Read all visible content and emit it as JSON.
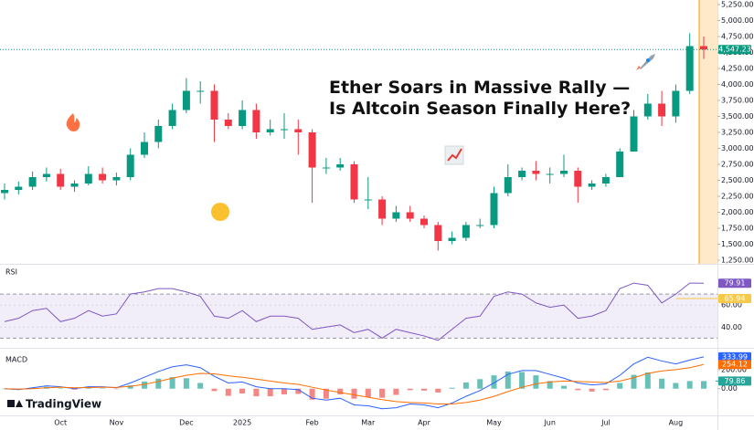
{
  "chart_data": {
    "type": "candlestick",
    "title_lines": [
      "Ether Soars in Massive Rally —",
      "Is Altcoin Season Finally Here?"
    ],
    "brand": "TradingView",
    "up_color": "#089981",
    "down_color": "#f23645",
    "categories": [
      null,
      null,
      null,
      null,
      "Oct",
      null,
      null,
      null,
      "Nov",
      null,
      null,
      null,
      null,
      "Dec",
      null,
      null,
      null,
      "2025",
      null,
      null,
      null,
      null,
      "Feb",
      null,
      null,
      null,
      "Mar",
      null,
      null,
      null,
      "Apr",
      null,
      null,
      null,
      null,
      "May",
      null,
      null,
      null,
      "Jun",
      null,
      null,
      null,
      "Jul",
      null,
      null,
      null,
      null,
      "Aug",
      null,
      null
    ],
    "ohlc": [
      [
        2300,
        2450,
        2200,
        2350
      ],
      [
        2350,
        2480,
        2280,
        2400
      ],
      [
        2400,
        2640,
        2350,
        2550
      ],
      [
        2550,
        2700,
        2480,
        2600
      ],
      [
        2600,
        2680,
        2350,
        2400
      ],
      [
        2400,
        2500,
        2320,
        2450
      ],
      [
        2450,
        2720,
        2420,
        2600
      ],
      [
        2600,
        2700,
        2450,
        2500
      ],
      [
        2500,
        2620,
        2420,
        2550
      ],
      [
        2550,
        3000,
        2500,
        2900
      ],
      [
        2900,
        3250,
        2850,
        3100
      ],
      [
        3100,
        3450,
        3000,
        3350
      ],
      [
        3350,
        3700,
        3300,
        3600
      ],
      [
        3600,
        4100,
        3550,
        3900
      ],
      [
        3900,
        4050,
        3700,
        3900
      ],
      [
        3900,
        4000,
        3100,
        3450
      ],
      [
        3450,
        3550,
        3300,
        3350
      ],
      [
        3350,
        3750,
        3300,
        3600
      ],
      [
        3600,
        3700,
        3150,
        3250
      ],
      [
        3250,
        3450,
        3200,
        3300
      ],
      [
        3300,
        3550,
        3150,
        3300
      ],
      [
        3300,
        3450,
        2900,
        3250
      ],
      [
        3250,
        3300,
        2150,
        2700
      ],
      [
        2700,
        2850,
        2600,
        2700
      ],
      [
        2700,
        2850,
        2650,
        2750
      ],
      [
        2750,
        2800,
        2150,
        2200
      ],
      [
        2200,
        2550,
        2050,
        2200
      ],
      [
        2200,
        2250,
        1800,
        1900
      ],
      [
        1900,
        2100,
        1850,
        2000
      ],
      [
        2000,
        2100,
        1850,
        1900
      ],
      [
        1900,
        1950,
        1750,
        1800
      ],
      [
        1800,
        1850,
        1400,
        1550
      ],
      [
        1550,
        1700,
        1500,
        1600
      ],
      [
        1600,
        1850,
        1550,
        1800
      ],
      [
        1800,
        1900,
        1750,
        1800
      ],
      [
        1800,
        2400,
        1750,
        2300
      ],
      [
        2300,
        2750,
        2250,
        2550
      ],
      [
        2550,
        2700,
        2500,
        2650
      ],
      [
        2650,
        2800,
        2500,
        2600
      ],
      [
        2600,
        2700,
        2450,
        2600
      ],
      [
        2600,
        2900,
        2550,
        2650
      ],
      [
        2650,
        2700,
        2150,
        2400
      ],
      [
        2400,
        2500,
        2350,
        2450
      ],
      [
        2450,
        2600,
        2400,
        2550
      ],
      [
        2550,
        3000,
        2550,
        2950
      ],
      [
        2950,
        3600,
        2950,
        3500
      ],
      [
        3500,
        3850,
        3450,
        3700
      ],
      [
        3700,
        3900,
        3350,
        3500
      ],
      [
        3500,
        4000,
        3400,
        3900
      ],
      [
        3900,
        4800,
        3850,
        4600
      ],
      [
        4600,
        4750,
        4400,
        4547.23
      ]
    ],
    "last_price": {
      "value": 4547.23,
      "label": "4,547.23"
    },
    "ylim": [
      1250,
      5250
    ],
    "yticks": [
      {
        "value": 1250,
        "label": "1,250.00"
      },
      {
        "value": 1500,
        "label": "1,500.00"
      },
      {
        "value": 1750,
        "label": "1,750.00"
      },
      {
        "value": 2000,
        "label": "2,000.00"
      },
      {
        "value": 2250,
        "label": "2,250.00"
      },
      {
        "value": 2500,
        "label": "2,500.00"
      },
      {
        "value": 2750,
        "label": "2,750.00"
      },
      {
        "value": 3000,
        "label": "3,000.00"
      },
      {
        "value": 3250,
        "label": "3,250.00"
      },
      {
        "value": 3500,
        "label": "3,500.00"
      },
      {
        "value": 3750,
        "label": "3,750.00"
      },
      {
        "value": 4000,
        "label": "4,000.00"
      },
      {
        "value": 4250,
        "label": "4,250.00"
      },
      {
        "value": 4500,
        "label": "4,500.00"
      },
      {
        "value": 4750,
        "label": "4,750.00"
      },
      {
        "value": 5000,
        "label": "5,000.00"
      },
      {
        "value": 5250,
        "label": "5,250.00"
      }
    ],
    "rsi": {
      "name": "RSI",
      "color": "#7e57c2",
      "ma_color": "#f7c948",
      "ylim": [
        22,
        95
      ],
      "band": [
        30,
        70
      ],
      "yticks": [
        {
          "value": 40,
          "label": "40.00"
        },
        {
          "value": 60,
          "label": "60.00"
        }
      ],
      "values": [
        45,
        48,
        55,
        57,
        45,
        48,
        55,
        50,
        52,
        70,
        72,
        75,
        75,
        72,
        68,
        50,
        48,
        55,
        45,
        50,
        50,
        48,
        38,
        40,
        42,
        35,
        38,
        30,
        38,
        35,
        32,
        28,
        38,
        48,
        50,
        68,
        72,
        70,
        62,
        58,
        60,
        48,
        50,
        55,
        75,
        80,
        78,
        62,
        70,
        80,
        79.91
      ],
      "last_label": "79.91",
      "ma_last": {
        "value": 65.94,
        "label": "65.94"
      }
    },
    "macd": {
      "name": "MACD",
      "macd_color": "#2962ff",
      "signal_color": "#ff6d00",
      "hist_up": "#26a69a",
      "hist_down": "#ef5350",
      "ylim": [
        -280,
        390
      ],
      "yticks": [
        {
          "value": 0,
          "label": "0.00"
        },
        {
          "value": 200,
          "label": "200.00"
        }
      ],
      "macd": [
        0,
        -10,
        10,
        30,
        20,
        0,
        20,
        20,
        10,
        60,
        120,
        180,
        230,
        250,
        220,
        130,
        60,
        70,
        20,
        0,
        0,
        -10,
        -100,
        -120,
        -100,
        -170,
        -180,
        -210,
        -200,
        -160,
        -170,
        -200,
        -150,
        -80,
        -20,
        60,
        150,
        190,
        190,
        150,
        110,
        60,
        40,
        50,
        140,
        260,
        330,
        290,
        260,
        300,
        333.99
      ],
      "signal": [
        0,
        -5,
        0,
        10,
        15,
        10,
        12,
        15,
        13,
        25,
        45,
        75,
        110,
        140,
        160,
        155,
        135,
        120,
        100,
        80,
        60,
        45,
        15,
        -15,
        -40,
        -65,
        -90,
        -115,
        -135,
        -145,
        -150,
        -160,
        -160,
        -145,
        -120,
        -80,
        -30,
        15,
        50,
        70,
        80,
        75,
        70,
        65,
        80,
        115,
        160,
        185,
        200,
        220,
        254.12
      ],
      "macd_label": "333.99",
      "signal_label": "254.12",
      "hist_last": {
        "value": 79.86,
        "label": "79.86"
      }
    }
  }
}
